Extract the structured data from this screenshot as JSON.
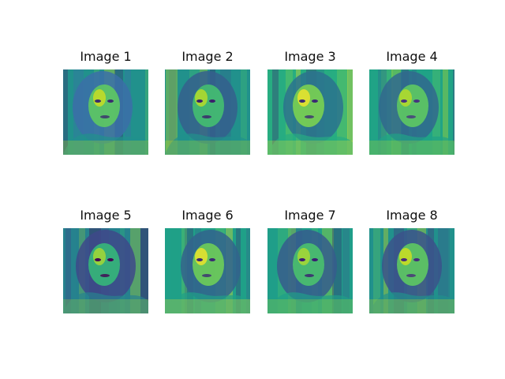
{
  "figure": {
    "panels": [
      {
        "title": "Image 1",
        "palette": [
          "#3a2a6e",
          "#3b6fa8",
          "#21918c",
          "#5ec962",
          "#d8e219"
        ],
        "content": "viridis-colored face image"
      },
      {
        "title": "Image 2",
        "palette": [
          "#3a1f6b",
          "#355f8d",
          "#21918c",
          "#44bf70",
          "#c7e020"
        ],
        "content": "viridis-colored face image"
      },
      {
        "title": "Image 3",
        "palette": [
          "#3b2a73",
          "#2c728e",
          "#27ad81",
          "#7ad151",
          "#fde725"
        ],
        "content": "viridis-colored face image"
      },
      {
        "title": "Image 4",
        "palette": [
          "#46337f",
          "#31688e",
          "#20a386",
          "#5ec962",
          "#c2df23"
        ],
        "content": "viridis-colored face image"
      },
      {
        "title": "Image 5",
        "palette": [
          "#440154",
          "#3e4989",
          "#26828e",
          "#35b779",
          "#b5de2b"
        ],
        "content": "viridis-colored face image"
      },
      {
        "title": "Image 6",
        "palette": [
          "#3b2a73",
          "#33638d",
          "#1fa088",
          "#6ece58",
          "#fde725"
        ],
        "content": "viridis-colored face image"
      },
      {
        "title": "Image 7",
        "palette": [
          "#3a1c71",
          "#365c8d",
          "#1f9e89",
          "#4ac16d",
          "#b5de2b"
        ],
        "content": "viridis-colored face image"
      },
      {
        "title": "Image 8",
        "palette": [
          "#472c7a",
          "#3b528b",
          "#21918c",
          "#5ec962",
          "#dde318"
        ],
        "content": "viridis-colored face image"
      }
    ]
  }
}
